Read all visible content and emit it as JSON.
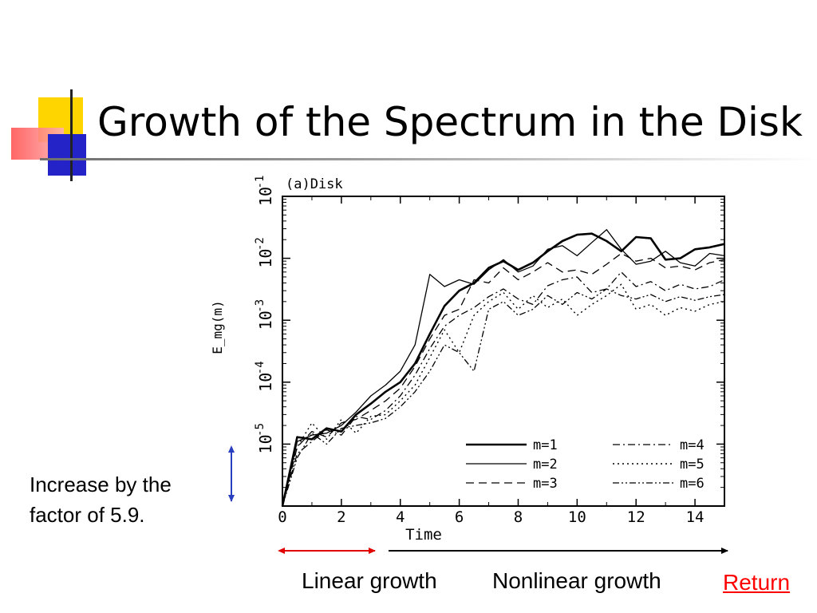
{
  "slide": {
    "title": "Growth of the Spectrum in the Disk",
    "note_lines": [
      "Increase by the",
      "factor of 5.9."
    ],
    "linear_label": "Linear growth",
    "nonlinear_label": "Nonlinear growth",
    "return_label": "Return",
    "colors": {
      "link": "#ff0000",
      "linear_arrow": "#e00000",
      "factor_arrow": "#2a3fc0",
      "nonlinear_arrow": "#000000"
    }
  },
  "chart_data": {
    "type": "line",
    "title": "(a)Disk",
    "xlabel": "Time",
    "ylabel": "E_mg(m)",
    "xlim": [
      0,
      15
    ],
    "ylim": [
      1e-06,
      0.1
    ],
    "yscale": "log",
    "x_ticks": [
      "0",
      "2",
      "4",
      "6",
      "8",
      "10",
      "12",
      "14"
    ],
    "y_ticks": [
      {
        "base": "10",
        "exp": "-5"
      },
      {
        "base": "10",
        "exp": "-4"
      },
      {
        "base": "10",
        "exp": "-3"
      },
      {
        "base": "10",
        "exp": "-2"
      },
      {
        "base": "10",
        "exp": "-1"
      }
    ],
    "legend_position": "bottom-right",
    "grid": false,
    "series": [
      {
        "name": "m=1",
        "style": "thick-solid",
        "x": [
          0,
          0.5,
          1,
          1.5,
          2,
          2.5,
          3,
          3.5,
          4,
          4.5,
          5,
          5.5,
          6,
          6.5,
          7,
          7.5,
          8,
          8.5,
          9,
          9.5,
          10,
          10.5,
          11,
          11.5,
          12,
          12.5,
          13,
          13.5,
          14,
          14.5,
          15
        ],
        "y": [
          1e-06,
          1.3e-05,
          1.2e-05,
          1.8e-05,
          1.6e-05,
          3e-05,
          4.5e-05,
          7e-05,
          0.0001,
          0.0002,
          0.0006,
          0.0017,
          0.003,
          0.004,
          0.007,
          0.009,
          0.0065,
          0.0085,
          0.013,
          0.019,
          0.024,
          0.025,
          0.019,
          0.013,
          0.022,
          0.021,
          0.0095,
          0.01,
          0.014,
          0.015,
          0.017
        ]
      },
      {
        "name": "m=2",
        "style": "solid",
        "x": [
          0,
          0.5,
          1,
          1.5,
          2,
          2.5,
          3,
          3.5,
          4,
          4.5,
          5,
          5.5,
          6,
          6.5,
          7,
          7.5,
          8,
          8.5,
          9,
          9.5,
          10,
          10.5,
          11,
          11.5,
          12,
          12.5,
          13,
          13.5,
          14,
          14.5,
          15
        ],
        "y": [
          1e-06,
          1.1e-05,
          1.4e-05,
          1.5e-05,
          2e-05,
          3.3e-05,
          6e-05,
          9e-05,
          0.00015,
          0.0004,
          0.0055,
          0.0035,
          0.0045,
          0.0038,
          0.0065,
          0.0095,
          0.006,
          0.0075,
          0.014,
          0.016,
          0.011,
          0.018,
          0.029,
          0.014,
          0.008,
          0.009,
          0.013,
          0.0085,
          0.0075,
          0.012,
          0.011
        ]
      },
      {
        "name": "m=3",
        "style": "dashed",
        "x": [
          0,
          0.5,
          1,
          1.5,
          2,
          2.5,
          3,
          3.5,
          4,
          4.5,
          5,
          5.5,
          6,
          6.5,
          7,
          7.5,
          8,
          8.5,
          9,
          9.5,
          10,
          10.5,
          11,
          11.5,
          12,
          12.5,
          13,
          13.5,
          14,
          14.5,
          15
        ],
        "y": [
          1e-06,
          9e-06,
          1.6e-05,
          1.3e-05,
          2.2e-05,
          2.5e-05,
          3.5e-05,
          5e-05,
          8e-05,
          0.00018,
          0.0005,
          0.0012,
          0.0015,
          0.0045,
          0.004,
          0.007,
          0.0045,
          0.006,
          0.0085,
          0.006,
          0.0065,
          0.0055,
          0.008,
          0.012,
          0.009,
          0.01,
          0.007,
          0.0075,
          0.0065,
          0.0085,
          0.0095
        ]
      },
      {
        "name": "m=4",
        "style": "dash-dot",
        "x": [
          0,
          0.5,
          1,
          1.5,
          2,
          2.5,
          3,
          3.5,
          4,
          4.5,
          5,
          5.5,
          6,
          6.5,
          7,
          7.5,
          8,
          8.5,
          9,
          9.5,
          10,
          10.5,
          11,
          11.5,
          12,
          12.5,
          13,
          13.5,
          14,
          14.5,
          15
        ],
        "y": [
          1e-06,
          7e-06,
          1.1e-05,
          1.7e-05,
          1.4e-05,
          2.8e-05,
          2.5e-05,
          3.5e-05,
          6e-05,
          0.00013,
          0.00035,
          0.0008,
          0.0012,
          0.0016,
          0.0024,
          0.0032,
          0.0022,
          0.0018,
          0.0036,
          0.0045,
          0.005,
          0.0028,
          0.0032,
          0.006,
          0.0035,
          0.0042,
          0.003,
          0.0038,
          0.0032,
          0.0035,
          0.0045
        ]
      },
      {
        "name": "m=5",
        "style": "dotted",
        "x": [
          0,
          0.5,
          1,
          1.5,
          2,
          2.5,
          3,
          3.5,
          4,
          4.5,
          5,
          5.5,
          6,
          6.5,
          7,
          7.5,
          8,
          8.5,
          9,
          9.5,
          10,
          10.5,
          11,
          11.5,
          12,
          12.5,
          13,
          13.5,
          14,
          14.5,
          15
        ],
        "y": [
          1e-06,
          9e-06,
          2.2e-05,
          1.2e-05,
          2.5e-05,
          1.5e-05,
          2.8e-05,
          3e-05,
          5e-05,
          9e-05,
          0.00025,
          0.0007,
          0.0003,
          0.0012,
          0.002,
          0.0028,
          0.0015,
          0.0025,
          0.0016,
          0.0022,
          0.0012,
          0.0018,
          0.0025,
          0.0038,
          0.0015,
          0.0018,
          0.0012,
          0.0016,
          0.0014,
          0.0018,
          0.002
        ]
      },
      {
        "name": "m=6",
        "style": "dash-dot-dot",
        "x": [
          0,
          0.5,
          1,
          1.5,
          2,
          2.5,
          3,
          3.5,
          4,
          4.5,
          5,
          5.5,
          6,
          6.5,
          7,
          7.5,
          8,
          8.5,
          9,
          9.5,
          10,
          10.5,
          11,
          11.5,
          12,
          12.5,
          13,
          13.5,
          14,
          14.5,
          15
        ],
        "y": [
          1e-06,
          6e-06,
          1.5e-05,
          1e-05,
          1.8e-05,
          2e-05,
          2.2e-05,
          2.6e-05,
          4e-05,
          7e-05,
          0.00015,
          0.0004,
          0.0003,
          0.00015,
          0.0015,
          0.002,
          0.0012,
          0.0015,
          0.0025,
          0.0018,
          0.0028,
          0.0022,
          0.0032,
          0.0025,
          0.0022,
          0.0026,
          0.002,
          0.0024,
          0.0021,
          0.0024,
          0.0026
        ]
      }
    ]
  }
}
